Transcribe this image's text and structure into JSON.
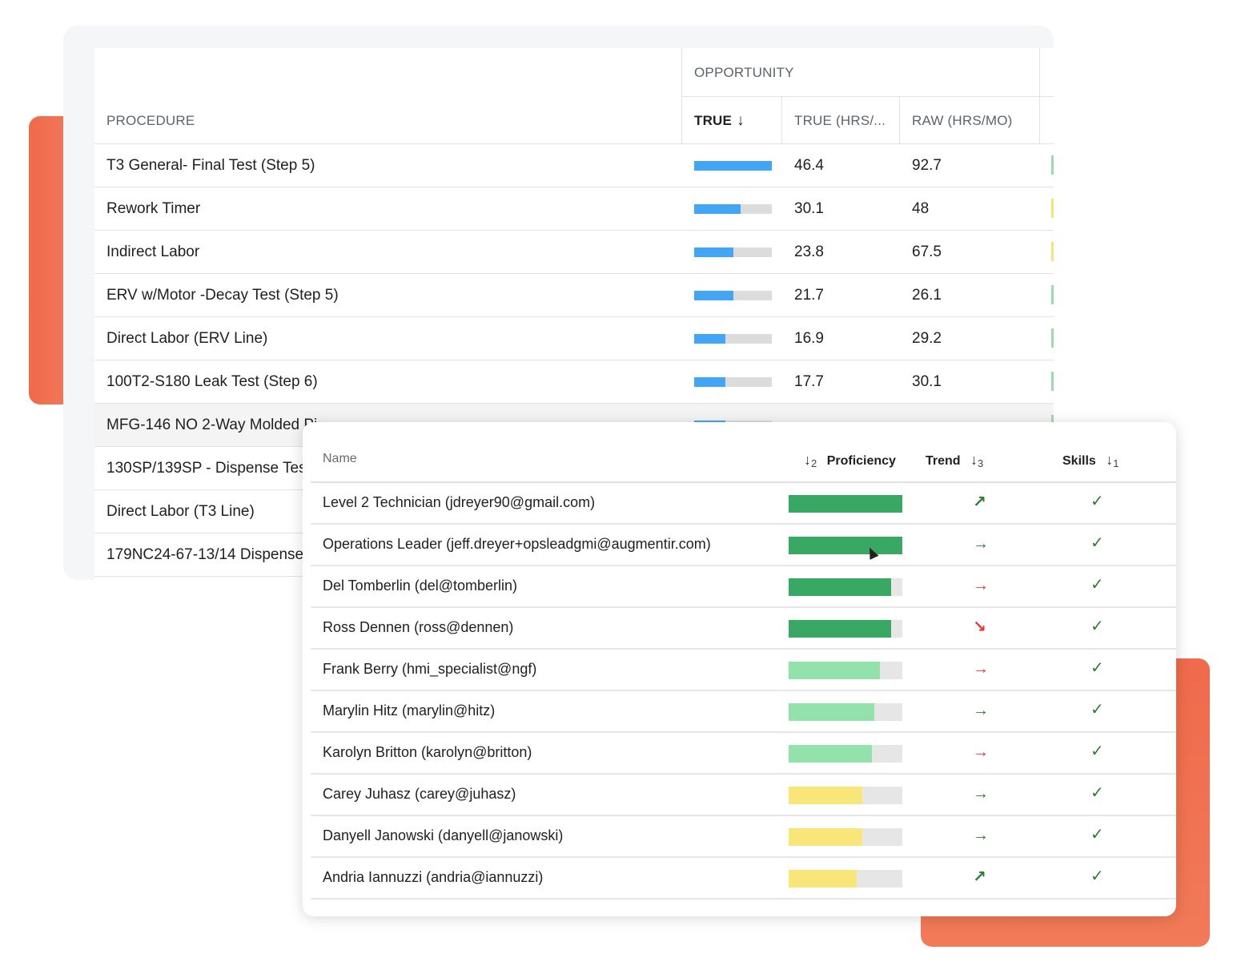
{
  "colors": {
    "accent_orange": "#f0704f",
    "bar_blue": "#42a5f5",
    "prof_dark_green": "#3aa865",
    "prof_light_green": "#94e2ab",
    "prof_yellow": "#f8e67a",
    "trend_green": "#2e7d32",
    "trend_red": "#e53935"
  },
  "opportunity": {
    "group_label": "OPPORTUNITY",
    "columns": {
      "procedure": "PROCEDURE",
      "true": "TRUE",
      "true_sort_icon": "arrow-down-icon",
      "true_hrs": "TRUE (HRS/...",
      "raw_hrs": "RAW (HRS/MO)"
    },
    "rows": [
      {
        "procedure": "T3 General- Final Test (Step 5)",
        "bar": 1.0,
        "true_hrs": "46.4",
        "raw_hrs": "92.7",
        "tick": "#9fd9b0"
      },
      {
        "procedure": "Rework Timer",
        "bar": 0.6,
        "true_hrs": "30.1",
        "raw_hrs": "48",
        "tick": "#f5e27a"
      },
      {
        "procedure": "Indirect Labor",
        "bar": 0.5,
        "true_hrs": "23.8",
        "raw_hrs": "67.5",
        "tick": "#f5e27a"
      },
      {
        "procedure": "ERV w/Motor -Decay Test (Step 5)",
        "bar": 0.5,
        "true_hrs": "21.7",
        "raw_hrs": "26.1",
        "tick": "#9fd9b0"
      },
      {
        "procedure": "Direct Labor (ERV Line)",
        "bar": 0.4,
        "true_hrs": "16.9",
        "raw_hrs": "29.2",
        "tick": "#9fd9b0"
      },
      {
        "procedure": "100T2-S180 Leak Test (Step 6)",
        "bar": 0.4,
        "true_hrs": "17.7",
        "raw_hrs": "30.1",
        "tick": "#9fd9b0"
      },
      {
        "procedure": "MFG-146 NO 2-Way Molded Pi",
        "bar": 0.4,
        "true_hrs": "",
        "raw_hrs": "",
        "tick": "#9fd9b0"
      },
      {
        "procedure": "130SP/139SP - Dispense Tes",
        "bar": 0,
        "true_hrs": "",
        "raw_hrs": "",
        "tick": ""
      },
      {
        "procedure": "Direct Labor (T3 Line)",
        "bar": 0,
        "true_hrs": "",
        "raw_hrs": "",
        "tick": ""
      },
      {
        "procedure": "179NC24-67-13/14 Dispense",
        "bar": 0,
        "true_hrs": "",
        "raw_hrs": "",
        "tick": ""
      }
    ]
  },
  "skills_table": {
    "columns": {
      "name": "Name",
      "proficiency_sort_icon": "arrow-down-icon",
      "proficiency_sort_order": "2",
      "proficiency": "Proficiency",
      "trend": "Trend",
      "trend_sort_icon": "arrow-down-icon",
      "trend_sort_order": "3",
      "skills": "Skills",
      "skills_sort_icon": "arrow-down-icon",
      "skills_sort_order": "1"
    },
    "rows": [
      {
        "name": "Level 2 Technician (jdreyer90@gmail.com)",
        "proficiency": 1.0,
        "level": "dark",
        "trend": "up-right",
        "skills": "check"
      },
      {
        "name": "Operations Leader (jeff.dreyer+opsleadgmi@augmentir.com)",
        "proficiency": 1.0,
        "level": "dark",
        "trend": "right",
        "skills": "check"
      },
      {
        "name": "Del Tomberlin (del@tomberlin)",
        "proficiency": 0.9,
        "level": "dark",
        "trend": "right-red",
        "skills": "check"
      },
      {
        "name": "Ross Dennen (ross@dennen)",
        "proficiency": 0.9,
        "level": "dark",
        "trend": "down-right-red",
        "skills": "check"
      },
      {
        "name": "Frank Berry (hmi_specialist@ngf)",
        "proficiency": 0.8,
        "level": "light",
        "trend": "right-red",
        "skills": "check"
      },
      {
        "name": "Marylin Hitz (marylin@hitz)",
        "proficiency": 0.75,
        "level": "light",
        "trend": "right",
        "skills": "check"
      },
      {
        "name": "Karolyn Britton (karolyn@britton)",
        "proficiency": 0.73,
        "level": "light",
        "trend": "right-red",
        "skills": "check"
      },
      {
        "name": "Carey Juhasz (carey@juhasz)",
        "proficiency": 0.65,
        "level": "yellow",
        "trend": "right",
        "skills": "check"
      },
      {
        "name": "Danyell Janowski (danyell@janowski)",
        "proficiency": 0.65,
        "level": "yellow",
        "trend": "right",
        "skills": "check"
      },
      {
        "name": "Andria Iannuzzi (andria@iannuzzi)",
        "proficiency": 0.6,
        "level": "yellow",
        "trend": "up-right",
        "skills": "check"
      }
    ]
  }
}
